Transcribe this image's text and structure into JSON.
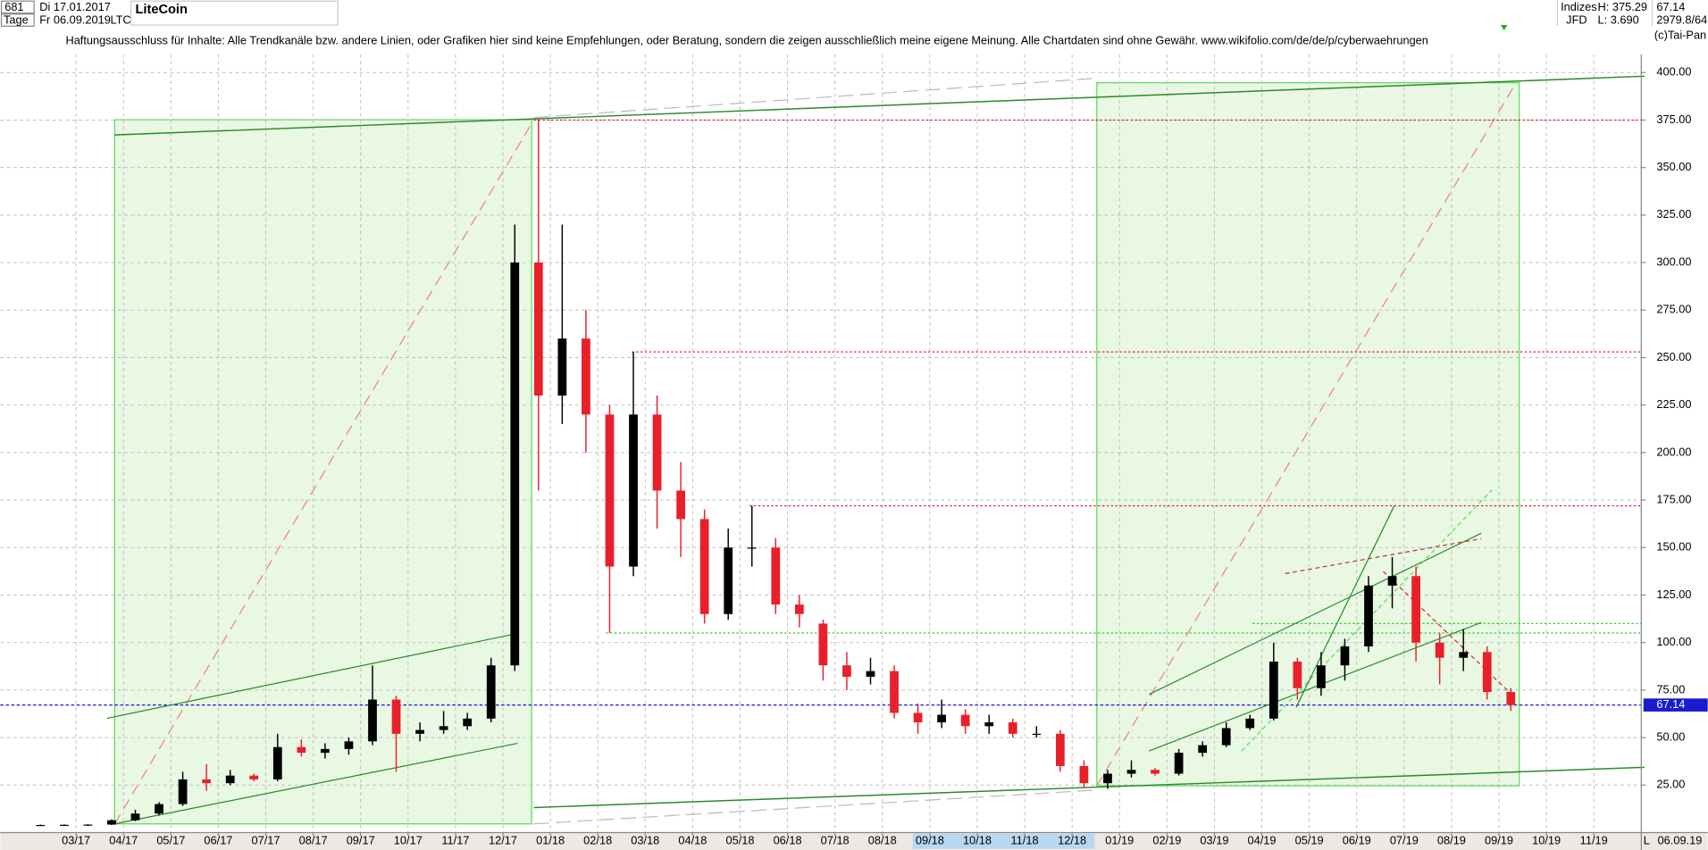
{
  "header": {
    "count": "681",
    "start": "Di 17.01.2017",
    "period": "Tage",
    "end": "Fr 06.09.2019",
    "symbol": "LTC",
    "title": "LiteCoin",
    "exchange_group": "Indizes",
    "exchange": "JFD",
    "high": "H: 375.29",
    "low": "L: 3.690",
    "price": "67.14",
    "volume": "2979.8/64",
    "copyright": "(c)Tai-Pan",
    "date_footer": "06.09.19",
    "scale_mode": "L"
  },
  "disclaimer": "Haftungsausschluss für Inhalte: Alle Trendkanäle bzw. andere Linien, oder Grafiken hier sind keine Empfehlungen, oder Beratung, sondern die zeigen ausschließlich meine eigene Meinung. Alle Chartdaten sind ohne Gewähr.  www.wikifolio.com/de/de/p/cyberwaehrungen",
  "chart_data": {
    "type": "candlestick",
    "categories": [
      null,
      null,
      "03/17",
      null,
      "04/17",
      null,
      "05/17",
      null,
      "06/17",
      null,
      "07/17",
      null,
      "08/17",
      null,
      "09/17",
      null,
      "10/17",
      null,
      "11/17",
      null,
      "12/17",
      null,
      "01/18",
      null,
      "02/18",
      null,
      "03/18",
      null,
      "04/18",
      null,
      "05/18",
      null,
      "06/18",
      null,
      "07/18",
      null,
      "08/18",
      null,
      "09/18",
      null,
      "10/18",
      null,
      "11/18",
      null,
      "12/18",
      null,
      "01/19",
      null,
      "02/19",
      null,
      "03/19",
      null,
      "04/19",
      null,
      "05/19",
      null,
      "06/19",
      null,
      "07/19",
      null,
      "08/19",
      null,
      "09/19",
      null,
      "10/19",
      null,
      "11/19",
      null
    ],
    "open": [
      4,
      4,
      4.1,
      4.2,
      6.5,
      10,
      15,
      28,
      26,
      30,
      28,
      45,
      42,
      44,
      48,
      70,
      52,
      54,
      56,
      60,
      88,
      300,
      230,
      260,
      220,
      140,
      220,
      180,
      165,
      115,
      150,
      150,
      120,
      110,
      88,
      82,
      85,
      63,
      58,
      62,
      56,
      58,
      52,
      52,
      35,
      26,
      31,
      33,
      31,
      42,
      46,
      55,
      60,
      90,
      76,
      88,
      98,
      130,
      135,
      100,
      92,
      95,
      74,
      null,
      null,
      null,
      null,
      null
    ],
    "high": [
      4.2,
      4.3,
      4.5,
      7,
      12,
      16,
      32,
      36,
      33,
      31,
      52,
      49,
      47,
      50,
      88,
      72,
      58,
      64,
      63,
      92,
      320,
      375.29,
      320,
      275,
      225,
      253,
      230,
      195,
      170,
      160,
      172,
      155,
      125,
      112,
      95,
      92,
      88,
      68,
      70,
      65,
      62,
      60,
      56,
      54,
      38,
      33,
      38,
      34,
      44,
      48,
      58,
      62,
      100,
      92,
      95,
      102,
      135,
      145,
      140,
      105,
      107,
      98,
      76,
      null,
      null,
      null,
      null,
      null
    ],
    "low": [
      3.8,
      3.69,
      3.9,
      4,
      6,
      9,
      14,
      22,
      25,
      27,
      27,
      40,
      39,
      41,
      46,
      32,
      48,
      52,
      54,
      58,
      85,
      180,
      215,
      200,
      105,
      135,
      160,
      145,
      110,
      112,
      140,
      115,
      108,
      80,
      75,
      78,
      60,
      52,
      55,
      52,
      52,
      50,
      50,
      32,
      24,
      23,
      29,
      30,
      30,
      40,
      45,
      54,
      59,
      70,
      72,
      80,
      95,
      118,
      90,
      78,
      85,
      70,
      64,
      null,
      null,
      null,
      null,
      null
    ],
    "close": [
      4,
      4.1,
      4.2,
      6.5,
      10,
      15,
      28,
      26,
      30,
      28,
      45,
      42,
      44,
      48,
      70,
      52,
      54,
      56,
      60,
      88,
      300,
      230,
      260,
      220,
      140,
      220,
      180,
      165,
      115,
      150,
      150,
      120,
      115,
      88,
      82,
      85,
      63,
      58,
      62,
      56,
      58,
      52,
      52,
      35,
      26,
      31,
      33,
      31,
      42,
      46,
      55,
      60,
      90,
      76,
      88,
      98,
      130,
      135,
      100,
      92,
      95,
      74,
      67.14,
      null,
      null,
      null,
      null,
      null
    ],
    "up_color": "#000000",
    "down_color": "#e8202a",
    "last_price": 67.14,
    "last_price_label": "67.14",
    "last_price_color": "#1a1ad0",
    "levels": [
      {
        "value": 375,
        "color": "#e8202a"
      },
      {
        "value": 253,
        "color": "#e8202a"
      },
      {
        "value": 172,
        "color": "#e8202a"
      },
      {
        "value": 105,
        "color": "#33cc33"
      },
      {
        "value": 110,
        "color": "#33cc33"
      }
    ],
    "ylim": [
      0,
      421
    ],
    "yticks": [
      {
        "value": 25,
        "label": "25.00"
      },
      {
        "value": 50,
        "label": "50.00"
      },
      {
        "value": 75,
        "label": "75.00"
      },
      {
        "value": 100,
        "label": "100.00"
      },
      {
        "value": 125,
        "label": "125.00"
      },
      {
        "value": 150,
        "label": "150.00"
      },
      {
        "value": 175,
        "label": "175.00"
      },
      {
        "value": 200,
        "label": "200.00"
      },
      {
        "value": 225,
        "label": "225.00"
      },
      {
        "value": 250,
        "label": "250.00"
      },
      {
        "value": 275,
        "label": "275.00"
      },
      {
        "value": 300,
        "label": "300.00"
      },
      {
        "value": 325,
        "label": "325.00"
      },
      {
        "value": 350,
        "label": "350.00"
      },
      {
        "value": 375,
        "label": "375.00"
      },
      {
        "value": 400,
        "label": "400.00"
      }
    ],
    "grid": true
  }
}
